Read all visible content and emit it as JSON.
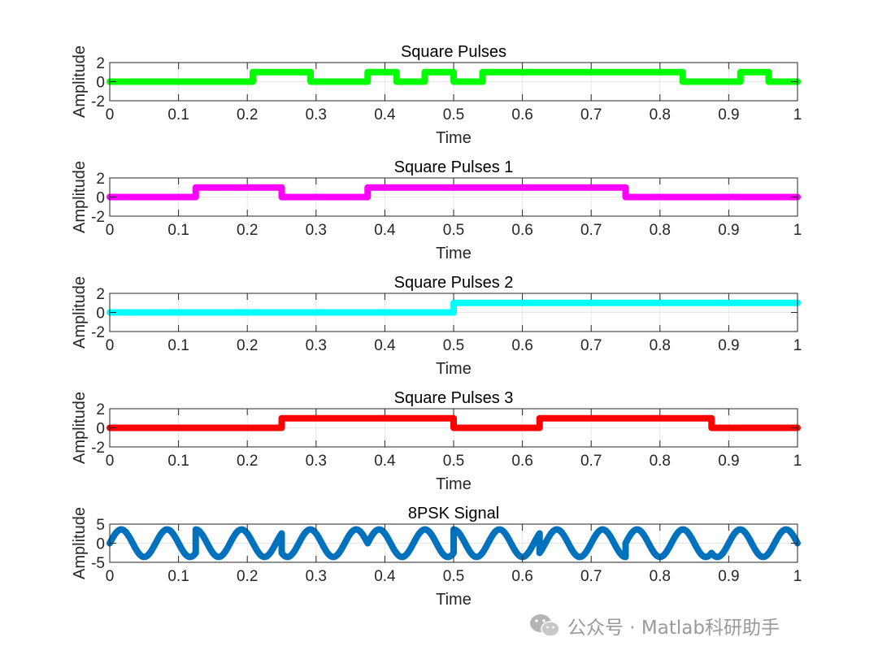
{
  "chart_data": [
    {
      "type": "line",
      "title": "Square Pulses",
      "xlabel": "Time",
      "ylabel": "Amplitude",
      "xlim": [
        0,
        1
      ],
      "ylim": [
        -2,
        2
      ],
      "xticks": [
        0,
        0.1,
        0.2,
        0.3,
        0.4,
        0.5,
        0.6,
        0.7,
        0.8,
        0.9,
        1
      ],
      "yticks": [
        -2,
        0,
        2
      ],
      "series": [
        {
          "color": "#00ff00",
          "x": [
            0,
            0.208,
            0.208,
            0.292,
            0.292,
            0.375,
            0.375,
            0.417,
            0.417,
            0.458,
            0.458,
            0.5,
            0.5,
            0.542,
            0.542,
            0.833,
            0.833,
            0.917,
            0.917,
            0.958,
            0.958,
            1
          ],
          "y": [
            0,
            0,
            1,
            1,
            0,
            0,
            1,
            1,
            0,
            0,
            1,
            1,
            0,
            0,
            1,
            1,
            0,
            0,
            1,
            1,
            0,
            0
          ]
        }
      ]
    },
    {
      "type": "line",
      "title": "Square Pulses 1",
      "xlabel": "Time",
      "ylabel": "Amplitude",
      "xlim": [
        0,
        1
      ],
      "ylim": [
        -2,
        2
      ],
      "xticks": [
        0,
        0.1,
        0.2,
        0.3,
        0.4,
        0.5,
        0.6,
        0.7,
        0.8,
        0.9,
        1
      ],
      "yticks": [
        -2,
        0,
        2
      ],
      "series": [
        {
          "color": "#ff00ff",
          "x": [
            0,
            0.125,
            0.125,
            0.25,
            0.25,
            0.375,
            0.375,
            0.75,
            0.75,
            1
          ],
          "y": [
            0,
            0,
            1,
            1,
            0,
            0,
            1,
            1,
            0,
            0
          ]
        }
      ]
    },
    {
      "type": "line",
      "title": "Square Pulses 2",
      "xlabel": "Time",
      "ylabel": "Amplitude",
      "xlim": [
        0,
        1
      ],
      "ylim": [
        -2,
        2
      ],
      "xticks": [
        0,
        0.1,
        0.2,
        0.3,
        0.4,
        0.5,
        0.6,
        0.7,
        0.8,
        0.9,
        1
      ],
      "yticks": [
        -2,
        0,
        2
      ],
      "series": [
        {
          "color": "#00ffff",
          "x": [
            0,
            0.5,
            0.5,
            1
          ],
          "y": [
            0,
            0,
            1,
            1
          ]
        }
      ]
    },
    {
      "type": "line",
      "title": "Square Pulses 3",
      "xlabel": "Time",
      "ylabel": "Amplitude",
      "xlim": [
        0,
        1
      ],
      "ylim": [
        -2,
        2
      ],
      "xticks": [
        0,
        0.1,
        0.2,
        0.3,
        0.4,
        0.5,
        0.6,
        0.7,
        0.8,
        0.9,
        1
      ],
      "yticks": [
        -2,
        0,
        2
      ],
      "series": [
        {
          "color": "#ff0000",
          "x": [
            0,
            0.25,
            0.25,
            0.5,
            0.5,
            0.625,
            0.625,
            0.875,
            0.875,
            1
          ],
          "y": [
            0,
            0,
            1,
            1,
            0,
            0,
            1,
            1,
            0,
            0
          ]
        }
      ]
    },
    {
      "type": "line",
      "title": "8PSK Signal",
      "xlabel": "Time",
      "ylabel": "Amplitude",
      "xlim": [
        0,
        1
      ],
      "ylim": [
        -5,
        5
      ],
      "xticks": [
        0,
        0.1,
        0.2,
        0.3,
        0.4,
        0.5,
        0.6,
        0.7,
        0.8,
        0.9,
        1
      ],
      "yticks": [
        -5,
        0,
        5
      ],
      "series": [
        {
          "color": "#0072bd",
          "form": "piecewise sinusoid",
          "amplitude": 3.6,
          "frequency": 15,
          "segments": [
            {
              "x0": 0,
              "x1": 0.125,
              "phase": 4.71
            },
            {
              "x0": 0.125,
              "x1": 0.25,
              "phase": 0.79
            },
            {
              "x0": 0.25,
              "x1": 0.375,
              "phase": 3.93
            },
            {
              "x0": 0.375,
              "x1": 0.5,
              "phase": 0.79
            },
            {
              "x0": 0.5,
              "x1": 0.625,
              "phase": 3.14
            },
            {
              "x0": 0.625,
              "x1": 0.75,
              "phase": 1.57
            },
            {
              "x0": 0.75,
              "x1": 0.875,
              "phase": 3.14
            },
            {
              "x0": 0.875,
              "x1": 1.0,
              "phase": 1.57
            }
          ]
        }
      ]
    }
  ],
  "watermark": {
    "text": "公众号 · Matlab科研助手",
    "icon": "wechat-icon"
  }
}
